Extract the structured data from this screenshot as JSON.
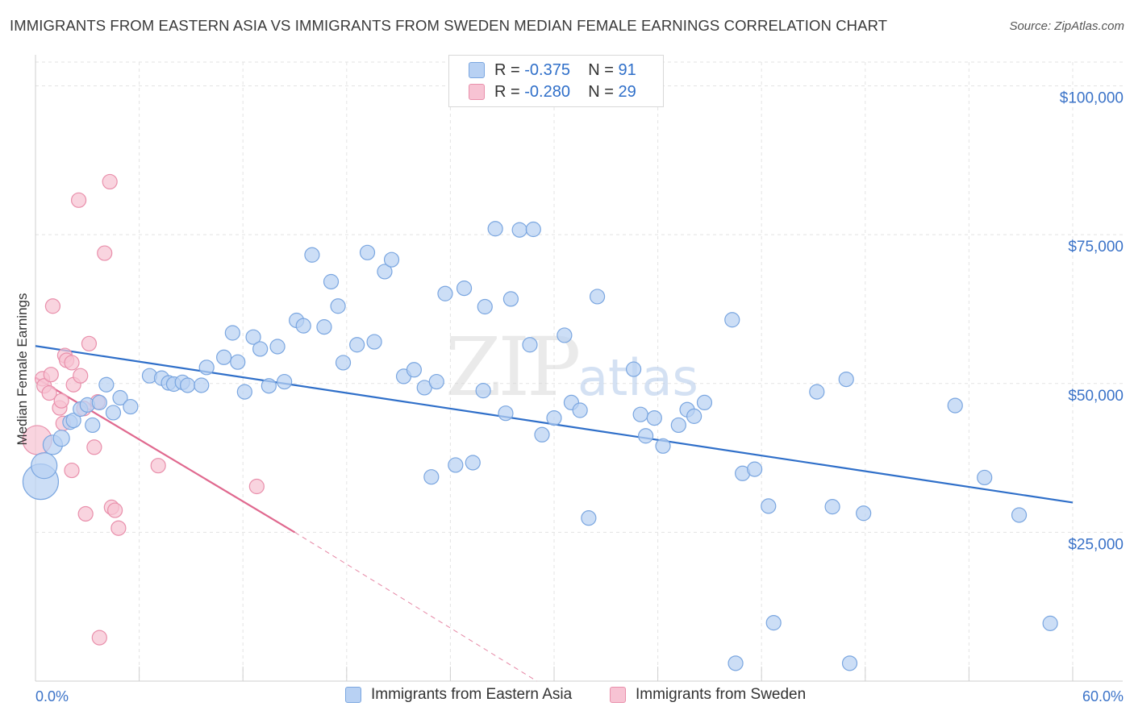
{
  "header": {
    "title": "IMMIGRANTS FROM EASTERN ASIA VS IMMIGRANTS FROM SWEDEN MEDIAN FEMALE EARNINGS CORRELATION CHART",
    "source": "Source: ZipAtlas.com"
  },
  "watermark": {
    "zip": "ZIP",
    "atlas": "atlas"
  },
  "legend": {
    "rows": [
      {
        "r_label": "R =",
        "r_value": "-0.375",
        "n_label": "N =",
        "n_value": "91"
      },
      {
        "r_label": "R =",
        "r_value": "-0.280",
        "n_label": "N =",
        "n_value": "29"
      }
    ]
  },
  "bottom_legend": {
    "blue_label": "Immigrants from Eastern Asia",
    "pink_label": "Immigrants from Sweden"
  },
  "colors": {
    "blue_fill": "#b8d1f3",
    "blue_stroke": "#7aa6e0",
    "blue_line": "#2f6fc9",
    "pink_fill": "#f7c3d3",
    "pink_stroke": "#e98fab",
    "pink_line": "#e0698f",
    "axis_text": "#3b73c8",
    "grid": "#e3e3e3"
  },
  "chart_data": {
    "type": "scatter",
    "title": "IMMIGRANTS FROM EASTERN ASIA VS IMMIGRANTS FROM SWEDEN MEDIAN FEMALE EARNINGS CORRELATION CHART",
    "xlabel": "",
    "ylabel": "Median Female Earnings",
    "xlim": [
      0,
      60
    ],
    "ylim": [
      0,
      104000
    ],
    "x_tick_labels": [
      "0.0%",
      "60.0%"
    ],
    "y_ticks": [
      25000,
      50000,
      75000,
      100000
    ],
    "y_tick_labels": [
      "$25,000",
      "$50,000",
      "$75,000",
      "$100,000"
    ],
    "grid": true,
    "legend_position": "top-center",
    "series": [
      {
        "name": "Immigrants from Eastern Asia",
        "r": -0.375,
        "n": 91,
        "trend": {
          "x0": 0,
          "y0": 56300,
          "x1": 60,
          "y1": 30000
        },
        "points": [
          [
            0.3,
            33500,
            22
          ],
          [
            0.5,
            36200,
            16
          ],
          [
            1.0,
            39700,
            12
          ],
          [
            1.5,
            40800,
            10
          ],
          [
            2.0,
            43500,
            9
          ],
          [
            2.2,
            43800,
            9
          ],
          [
            2.6,
            45700,
            9
          ],
          [
            3.0,
            46400,
            9
          ],
          [
            3.3,
            43000,
            9
          ],
          [
            3.7,
            46800,
            9
          ],
          [
            4.1,
            49800,
            9
          ],
          [
            4.5,
            45100,
            9
          ],
          [
            4.9,
            47600,
            9
          ],
          [
            5.5,
            46100,
            9
          ],
          [
            6.6,
            51300,
            9
          ],
          [
            7.3,
            50900,
            9
          ],
          [
            7.7,
            50100,
            9
          ],
          [
            8.0,
            49900,
            9
          ],
          [
            8.5,
            50200,
            9
          ],
          [
            8.8,
            49700,
            9
          ],
          [
            9.6,
            49700,
            9
          ],
          [
            9.9,
            52700,
            9
          ],
          [
            10.9,
            54400,
            9
          ],
          [
            11.4,
            58500,
            9
          ],
          [
            11.7,
            53600,
            9
          ],
          [
            12.1,
            48600,
            9
          ],
          [
            12.6,
            57800,
            9
          ],
          [
            13.0,
            55800,
            9
          ],
          [
            13.5,
            49600,
            9
          ],
          [
            14.0,
            56200,
            9
          ],
          [
            14.4,
            50300,
            9
          ],
          [
            15.1,
            60600,
            9
          ],
          [
            15.5,
            59700,
            9
          ],
          [
            16.0,
            71600,
            9
          ],
          [
            16.7,
            59500,
            9
          ],
          [
            17.1,
            67100,
            9
          ],
          [
            17.5,
            63000,
            9
          ],
          [
            17.8,
            53500,
            9
          ],
          [
            18.6,
            56500,
            9
          ],
          [
            19.2,
            72000,
            9
          ],
          [
            19.6,
            57000,
            9
          ],
          [
            20.2,
            68800,
            9
          ],
          [
            20.6,
            70800,
            9
          ],
          [
            21.3,
            51200,
            9
          ],
          [
            21.9,
            52300,
            9
          ],
          [
            22.5,
            49300,
            9
          ],
          [
            22.9,
            34300,
            9
          ],
          [
            23.2,
            50300,
            9
          ],
          [
            23.7,
            65100,
            9
          ],
          [
            24.3,
            36300,
            9
          ],
          [
            24.8,
            66000,
            9
          ],
          [
            25.3,
            36700,
            9
          ],
          [
            25.9,
            48800,
            9
          ],
          [
            26.0,
            62900,
            9
          ],
          [
            26.6,
            76000,
            9
          ],
          [
            27.2,
            45000,
            9
          ],
          [
            27.5,
            64200,
            9
          ],
          [
            28.0,
            75800,
            9
          ],
          [
            28.6,
            56500,
            9
          ],
          [
            28.8,
            75900,
            9
          ],
          [
            29.3,
            41400,
            9
          ],
          [
            30.0,
            44200,
            9
          ],
          [
            30.6,
            58100,
            9
          ],
          [
            31.0,
            46800,
            9
          ],
          [
            31.5,
            45500,
            9
          ],
          [
            32.0,
            27400,
            9
          ],
          [
            32.5,
            64600,
            9
          ],
          [
            34.6,
            52400,
            9
          ],
          [
            35.0,
            44800,
            9
          ],
          [
            35.3,
            41200,
            9
          ],
          [
            35.8,
            44200,
            9
          ],
          [
            36.3,
            39500,
            9
          ],
          [
            37.2,
            43000,
            9
          ],
          [
            37.7,
            45600,
            9
          ],
          [
            38.1,
            44500,
            9
          ],
          [
            38.7,
            46800,
            9
          ],
          [
            40.3,
            60700,
            9
          ],
          [
            40.5,
            3000,
            9
          ],
          [
            40.9,
            34900,
            9
          ],
          [
            41.6,
            35600,
            9
          ],
          [
            42.4,
            29400,
            9
          ],
          [
            42.7,
            9800,
            9
          ],
          [
            45.2,
            48600,
            9
          ],
          [
            46.1,
            29300,
            9
          ],
          [
            46.9,
            50700,
            9
          ],
          [
            47.1,
            3000,
            9
          ],
          [
            47.9,
            28200,
            9
          ],
          [
            53.2,
            46300,
            9
          ],
          [
            54.9,
            34200,
            9
          ],
          [
            56.9,
            27900,
            9
          ],
          [
            58.7,
            9700,
            9
          ]
        ]
      },
      {
        "name": "Immigrants from Sweden",
        "r": -0.28,
        "n": 29,
        "trend": {
          "x0": 0,
          "y0": 51000,
          "x1": 15,
          "y1": 25000
        },
        "trend_extension": {
          "x0": 15,
          "y0": 25000,
          "x1": 29,
          "y1": 0
        },
        "points": [
          [
            0.1,
            40500,
            18
          ],
          [
            0.4,
            50800,
            9
          ],
          [
            0.5,
            49600,
            9
          ],
          [
            0.8,
            48400,
            9
          ],
          [
            0.9,
            51500,
            9
          ],
          [
            1.0,
            63000,
            9
          ],
          [
            1.4,
            45900,
            9
          ],
          [
            1.5,
            47100,
            9
          ],
          [
            1.6,
            43300,
            9
          ],
          [
            1.7,
            54700,
            9
          ],
          [
            1.8,
            53900,
            9
          ],
          [
            2.1,
            53500,
            9
          ],
          [
            2.1,
            35400,
            9
          ],
          [
            2.2,
            49800,
            9
          ],
          [
            2.5,
            80800,
            9
          ],
          [
            2.6,
            51300,
            9
          ],
          [
            2.8,
            45800,
            9
          ],
          [
            2.9,
            28100,
            9
          ],
          [
            3.1,
            56700,
            9
          ],
          [
            3.4,
            39300,
            9
          ],
          [
            3.6,
            46900,
            9
          ],
          [
            3.7,
            7300,
            9
          ],
          [
            4.0,
            71900,
            9
          ],
          [
            4.3,
            83900,
            9
          ],
          [
            4.4,
            29200,
            9
          ],
          [
            4.6,
            28700,
            9
          ],
          [
            4.8,
            25700,
            9
          ],
          [
            7.1,
            36200,
            9
          ],
          [
            12.8,
            32700,
            9
          ]
        ]
      }
    ]
  }
}
